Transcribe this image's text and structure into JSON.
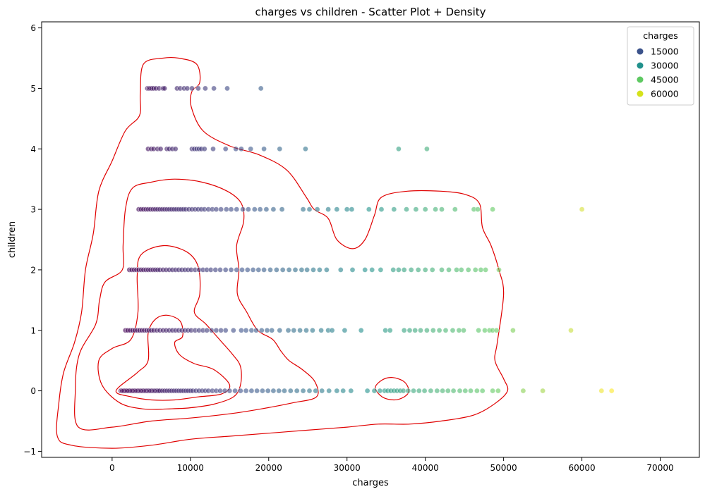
{
  "chart_data": {
    "type": "scatter",
    "title": "charges vs children - Scatter Plot + Density",
    "xlabel": "charges",
    "ylabel": "children",
    "xlim": [
      -9000,
      75000
    ],
    "ylim": [
      -1.1,
      6.1
    ],
    "xticks": [
      0,
      10000,
      20000,
      30000,
      40000,
      50000,
      60000,
      70000
    ],
    "yticks": [
      -1,
      0,
      1,
      2,
      3,
      4,
      5,
      6
    ],
    "grid": false,
    "colormap": "viridis",
    "color_range": [
      1100,
      64000
    ],
    "point_alpha": 0.6,
    "legend": {
      "title": "charges",
      "position": "top-right",
      "entries": [
        {
          "label": "15000",
          "value": 15000,
          "color": "#3b528b"
        },
        {
          "label": "30000",
          "value": 30000,
          "color": "#21918c"
        },
        {
          "label": "45000",
          "value": 45000,
          "color": "#5ec962"
        },
        {
          "label": "60000",
          "value": 60000,
          "color": "#d5e21b"
        }
      ]
    },
    "series": [
      {
        "children": 5,
        "charges": [
          4500,
          4700,
          4900,
          5100,
          5300,
          5600,
          6000,
          6500,
          6700,
          8300,
          8700,
          9200,
          9600,
          10200,
          11000,
          11900,
          13000,
          14700,
          19000
        ]
      },
      {
        "children": 4,
        "charges": [
          4600,
          5000,
          5300,
          5800,
          6200,
          7000,
          7300,
          7700,
          8100,
          10200,
          10500,
          10800,
          11100,
          11400,
          11800,
          12900,
          14500,
          15800,
          16500,
          17700,
          19400,
          21400,
          24700,
          36600,
          40200
        ]
      },
      {
        "children": 3,
        "charges": [
          3400,
          3700,
          4000,
          4300,
          4600,
          4900,
          5200,
          5500,
          5800,
          6100,
          6400,
          6700,
          7000,
          7300,
          7600,
          7900,
          8200,
          8500,
          8800,
          9100,
          9400,
          9800,
          10200,
          10600,
          11000,
          11400,
          11800,
          12300,
          12800,
          13300,
          13900,
          14600,
          15200,
          15900,
          16700,
          17400,
          18200,
          18900,
          19700,
          20600,
          21700,
          24400,
          25200,
          26200,
          27600,
          28700,
          30000,
          30600,
          32800,
          34400,
          36000,
          37600,
          38800,
          40000,
          41300,
          42100,
          43800,
          46200,
          46700,
          48600,
          60000
        ]
      },
      {
        "children": 2,
        "charges": [
          2200,
          2500,
          2800,
          3100,
          3400,
          3700,
          4000,
          4300,
          4600,
          4900,
          5200,
          5500,
          5800,
          6100,
          6500,
          6900,
          7300,
          7700,
          8100,
          8500,
          8900,
          9300,
          9700,
          10100,
          10600,
          11100,
          11600,
          12100,
          12600,
          13200,
          13800,
          14500,
          15200,
          15900,
          16600,
          17300,
          18000,
          18700,
          19400,
          20200,
          21000,
          21800,
          22600,
          23400,
          24200,
          24900,
          25700,
          26500,
          27400,
          29200,
          30700,
          32300,
          33200,
          34300,
          35900,
          36600,
          37300,
          38200,
          39100,
          40000,
          40900,
          42100,
          43000,
          44000,
          44600,
          45500,
          46400,
          47100,
          47700,
          49400
        ]
      },
      {
        "children": 1,
        "charges": [
          1700,
          2000,
          2300,
          2600,
          2900,
          3200,
          3500,
          3800,
          4100,
          4400,
          4700,
          5000,
          5300,
          5700,
          6100,
          6500,
          6900,
          7300,
          7700,
          8100,
          8500,
          8900,
          9300,
          9700,
          10100,
          10600,
          11100,
          11600,
          12100,
          12700,
          13300,
          13900,
          14500,
          15500,
          16500,
          17100,
          17800,
          18400,
          19100,
          19800,
          20400,
          21400,
          22500,
          23200,
          24000,
          24800,
          25600,
          26700,
          27600,
          28100,
          29700,
          31800,
          34900,
          35500,
          37300,
          38000,
          38700,
          39400,
          40200,
          41000,
          41800,
          42600,
          43500,
          44300,
          44900,
          46800,
          47600,
          48200,
          48600,
          49100,
          51200,
          58600
        ]
      },
      {
        "children": 0,
        "charges": [
          1100,
          1300,
          1500,
          1700,
          1900,
          2100,
          2300,
          2500,
          2700,
          2900,
          3100,
          3300,
          3500,
          3700,
          3900,
          4100,
          4300,
          4500,
          4700,
          4900,
          5100,
          5300,
          5500,
          5700,
          5900,
          6100,
          6400,
          6700,
          7000,
          7300,
          7600,
          7900,
          8200,
          8500,
          8800,
          9100,
          9400,
          9700,
          10000,
          10300,
          10700,
          11100,
          11500,
          11900,
          12300,
          12800,
          13300,
          13800,
          14400,
          15000,
          15700,
          16400,
          17100,
          17800,
          18500,
          19200,
          19900,
          20600,
          21300,
          22000,
          22800,
          23600,
          24400,
          25200,
          26000,
          26800,
          27700,
          28700,
          29500,
          30500,
          32600,
          33500,
          34200,
          34800,
          35200,
          35600,
          36000,
          36400,
          36800,
          37200,
          37800,
          38500,
          39200,
          39900,
          40700,
          41500,
          42200,
          42900,
          43600,
          44400,
          45100,
          45800,
          46600,
          47300,
          48600,
          49300,
          52500,
          55000,
          62500,
          63800
        ]
      }
    ],
    "density_contours": [
      {
        "level": "outer",
        "points": [
          [
            -5200,
            -0.9
          ],
          [
            -7000,
            -0.75
          ],
          [
            -6800,
            -0.2
          ],
          [
            -6200,
            0.3
          ],
          [
            -4800,
            0.8
          ],
          [
            -3900,
            1.3
          ],
          [
            -3400,
            2.0
          ],
          [
            -2400,
            2.6
          ],
          [
            -1700,
            3.3
          ],
          [
            0,
            3.8
          ],
          [
            1700,
            4.3
          ],
          [
            3500,
            4.55
          ],
          [
            3600,
            4.9
          ],
          [
            4000,
            5.4
          ],
          [
            6500,
            5.5
          ],
          [
            8500,
            5.5
          ],
          [
            10800,
            5.4
          ],
          [
            11200,
            5.1
          ],
          [
            10200,
            4.95
          ],
          [
            10100,
            4.7
          ],
          [
            11600,
            4.3
          ],
          [
            15000,
            4.05
          ],
          [
            18800,
            3.9
          ],
          [
            22300,
            3.65
          ],
          [
            24800,
            3.2
          ],
          [
            25800,
            3.0
          ],
          [
            27600,
            2.85
          ],
          [
            28700,
            2.5
          ],
          [
            30700,
            2.35
          ],
          [
            32300,
            2.5
          ],
          [
            33500,
            2.9
          ],
          [
            34400,
            3.2
          ],
          [
            37700,
            3.3
          ],
          [
            42000,
            3.3
          ],
          [
            45000,
            3.25
          ],
          [
            46900,
            3.1
          ],
          [
            47300,
            2.7
          ],
          [
            48400,
            2.4
          ],
          [
            49400,
            2.0
          ],
          [
            50000,
            1.6
          ],
          [
            49200,
            0.8
          ],
          [
            48900,
            0.5
          ],
          [
            50000,
            0.2
          ],
          [
            50500,
            0.0
          ],
          [
            49000,
            -0.2
          ],
          [
            46200,
            -0.4
          ],
          [
            42000,
            -0.5
          ],
          [
            38000,
            -0.55
          ],
          [
            34000,
            -0.55
          ],
          [
            30000,
            -0.6
          ],
          [
            25000,
            -0.65
          ],
          [
            20000,
            -0.7
          ],
          [
            15000,
            -0.75
          ],
          [
            10000,
            -0.8
          ],
          [
            5000,
            -0.9
          ],
          [
            0,
            -0.95
          ],
          [
            -5200,
            -0.9
          ]
        ]
      },
      {
        "level": "second",
        "points": [
          [
            -4300,
            -0.6
          ],
          [
            -4700,
            0.0
          ],
          [
            -4200,
            0.6
          ],
          [
            -2100,
            1.1
          ],
          [
            -1600,
            1.5
          ],
          [
            -900,
            1.8
          ],
          [
            1300,
            2.0
          ],
          [
            1400,
            2.4
          ],
          [
            1700,
            3.0
          ],
          [
            2600,
            3.35
          ],
          [
            5000,
            3.45
          ],
          [
            8000,
            3.5
          ],
          [
            11500,
            3.45
          ],
          [
            14700,
            3.3
          ],
          [
            16500,
            3.1
          ],
          [
            16800,
            2.8
          ],
          [
            15900,
            2.4
          ],
          [
            16200,
            2.0
          ],
          [
            16000,
            1.6
          ],
          [
            17200,
            1.3
          ],
          [
            18600,
            1.0
          ],
          [
            20500,
            0.85
          ],
          [
            21600,
            0.65
          ],
          [
            22600,
            0.5
          ],
          [
            24300,
            0.35
          ],
          [
            25900,
            0.15
          ],
          [
            26100,
            -0.1
          ],
          [
            23000,
            -0.2
          ],
          [
            19000,
            -0.3
          ],
          [
            15000,
            -0.38
          ],
          [
            10000,
            -0.45
          ],
          [
            5000,
            -0.5
          ],
          [
            0,
            -0.6
          ],
          [
            -4300,
            -0.6
          ]
        ]
      },
      {
        "level": "third",
        "points": [
          [
            -1300,
            0.1
          ],
          [
            -1700,
            0.5
          ],
          [
            0,
            0.7
          ],
          [
            2400,
            0.85
          ],
          [
            3300,
            1.3
          ],
          [
            3200,
            1.9
          ],
          [
            3700,
            2.25
          ],
          [
            6500,
            2.4
          ],
          [
            9500,
            2.3
          ],
          [
            11000,
            2.05
          ],
          [
            11200,
            1.6
          ],
          [
            10500,
            1.3
          ],
          [
            12000,
            1.1
          ],
          [
            13700,
            0.85
          ],
          [
            15400,
            0.6
          ],
          [
            16400,
            0.4
          ],
          [
            16400,
            0.1
          ],
          [
            15500,
            -0.1
          ],
          [
            13000,
            -0.22
          ],
          [
            10000,
            -0.28
          ],
          [
            7000,
            -0.3
          ],
          [
            4000,
            -0.3
          ],
          [
            1000,
            -0.2
          ],
          [
            -1300,
            0.1
          ]
        ]
      },
      {
        "level": "inner",
        "points": [
          [
            500,
            0.0
          ],
          [
            3200,
            0.3
          ],
          [
            4600,
            0.5
          ],
          [
            4600,
            0.95
          ],
          [
            5500,
            1.18
          ],
          [
            7000,
            1.25
          ],
          [
            8700,
            1.15
          ],
          [
            9000,
            0.9
          ],
          [
            8000,
            0.8
          ],
          [
            8600,
            0.6
          ],
          [
            10500,
            0.45
          ],
          [
            13000,
            0.35
          ],
          [
            15000,
            0.1
          ],
          [
            14000,
            -0.05
          ],
          [
            11000,
            -0.1
          ],
          [
            8000,
            -0.15
          ],
          [
            5000,
            -0.15
          ],
          [
            2500,
            -0.1
          ],
          [
            500,
            0.0
          ]
        ]
      },
      {
        "level": "small",
        "points": [
          [
            33600,
            0.05
          ],
          [
            34500,
            0.18
          ],
          [
            35800,
            0.22
          ],
          [
            37300,
            0.15
          ],
          [
            37900,
            0.0
          ],
          [
            37300,
            -0.1
          ],
          [
            36000,
            -0.15
          ],
          [
            34500,
            -0.1
          ],
          [
            33600,
            0.05
          ]
        ]
      }
    ]
  }
}
